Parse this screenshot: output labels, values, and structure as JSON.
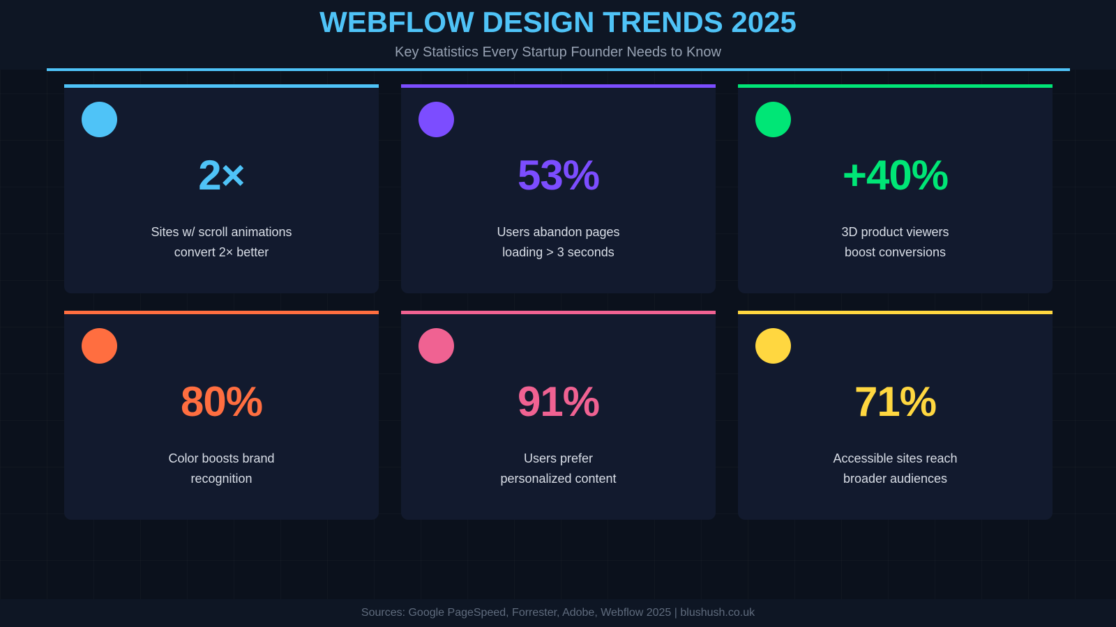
{
  "header": {
    "title": "WEBFLOW DESIGN TRENDS 2025",
    "subtitle": "Key Statistics Every Startup Founder Needs to Know",
    "accent": "#4fc3f7"
  },
  "cards": [
    {
      "value": "2×",
      "desc_line1": "Sites w/ scroll animations",
      "desc_line2": "convert 2× better",
      "color": "#4fc3f7"
    },
    {
      "value": "53%",
      "desc_line1": "Users abandon pages",
      "desc_line2": "loading > 3 seconds",
      "color": "#7c4dff"
    },
    {
      "value": "+40%",
      "desc_line1": "3D product viewers",
      "desc_line2": "boost conversions",
      "color": "#00e676"
    },
    {
      "value": "80%",
      "desc_line1": "Color boosts brand",
      "desc_line2": "recognition",
      "color": "#ff6e40"
    },
    {
      "value": "91%",
      "desc_line1": "Users prefer",
      "desc_line2": "personalized content",
      "color": "#f06292"
    },
    {
      "value": "71%",
      "desc_line1": "Accessible sites reach",
      "desc_line2": "broader audiences",
      "color": "#ffd740"
    }
  ],
  "footer": {
    "text": "Sources: Google PageSpeed, Forrester, Adobe, Webflow 2025 | blushush.co.uk"
  }
}
